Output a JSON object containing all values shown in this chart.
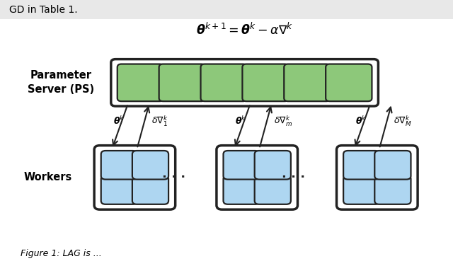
{
  "title": "$\\boldsymbol{\\theta}^{k+1} = \\boldsymbol{\\theta}^k - \\alpha\\nabla^k$",
  "ps_label": "Parameter\nServer (PS)",
  "workers_label": "Workers",
  "ps_cell_color": "#8dc87a",
  "worker_cell_color": "#aed6f1",
  "background_color": "#ffffff",
  "num_ps_cells": 6,
  "dots": "· · ·",
  "arrow_color": "#222222",
  "theta_labels": [
    "$\\boldsymbol{\\theta}^k$",
    "$\\boldsymbol{\\theta}^k$",
    "$\\boldsymbol{\\theta}^k$"
  ],
  "grad_labels": [
    "$\\delta\\nabla_1^k$",
    "$\\delta\\nabla_m^k$",
    "$\\delta\\nabla_M^k$"
  ],
  "top_text": "GD in Table 1.",
  "bottom_text": "Figure 1: LAG is ..."
}
